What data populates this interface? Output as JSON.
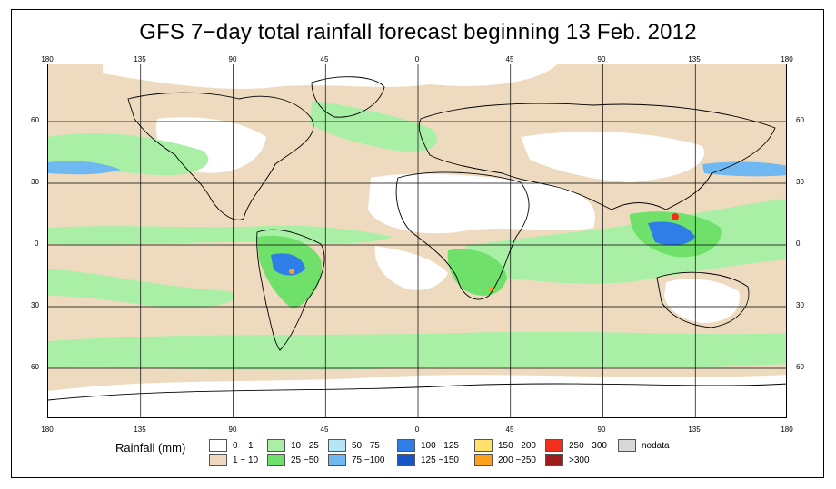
{
  "title": "GFS 7−day total rainfall forecast beginning 13 Feb. 2012",
  "axes": {
    "lon_labels": [
      "180",
      "135",
      "90",
      "45",
      "0",
      "45",
      "90",
      "135",
      "180"
    ],
    "lon_values": [
      -180,
      -135,
      -90,
      -45,
      0,
      45,
      90,
      135,
      180
    ],
    "lat_labels": [
      "60",
      "30",
      "0",
      "30",
      "60"
    ],
    "lat_values": [
      60,
      30,
      0,
      -30,
      -60
    ],
    "lat_range": [
      -85,
      88
    ],
    "lon_range": [
      -180,
      180
    ]
  },
  "legend": {
    "title": "Rainfall (mm)",
    "items": [
      {
        "label": "0 − 1",
        "color": "#ffffff"
      },
      {
        "label": "1 − 10",
        "color": "#eed9be"
      },
      {
        "label": "10 −25",
        "color": "#a9f0a6"
      },
      {
        "label": "25 −50",
        "color": "#6fe06a"
      },
      {
        "label": "50 −75",
        "color": "#b6e6f6"
      },
      {
        "label": "75 −100",
        "color": "#70b8f2"
      },
      {
        "label": "100 −125",
        "color": "#2f7de6"
      },
      {
        "label": "125 −150",
        "color": "#1656c8"
      },
      {
        "label": "150 −200",
        "color": "#ffe06a"
      },
      {
        "label": "200 −250",
        "color": "#ffa018"
      },
      {
        "label": "250 −300",
        "color": "#f0301c"
      },
      {
        "label": ">300",
        "color": "#a01c1c"
      },
      {
        "label": "nodata",
        "color": "#d8d8d8"
      }
    ]
  }
}
